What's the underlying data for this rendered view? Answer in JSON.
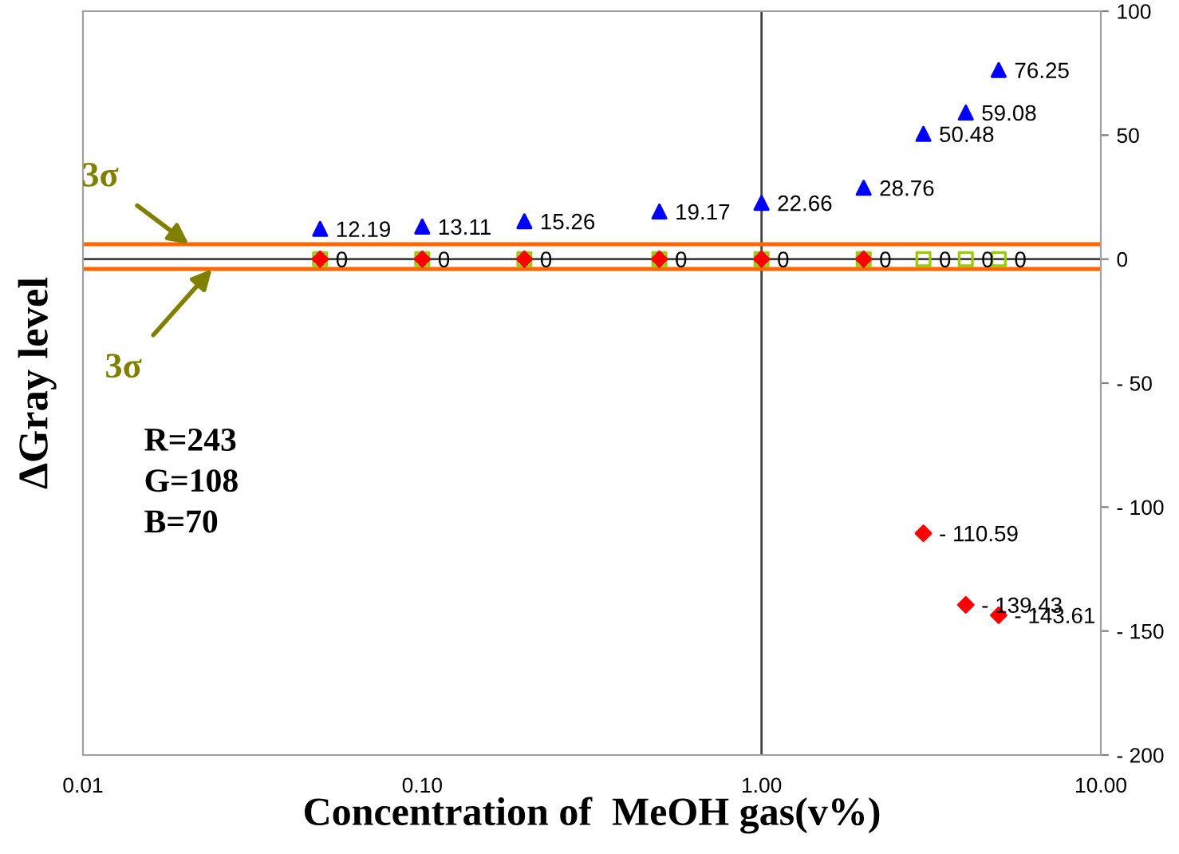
{
  "chart_data": {
    "type": "scatter",
    "xlabel": "Concentration of  MeOH gas(v%)",
    "ylabel": "ΔGray level",
    "log": "x",
    "xlim": [
      0.01,
      10
    ],
    "xticks": [
      {
        "value": 0.01,
        "label": "0.01"
      },
      {
        "value": 0.1,
        "label": "0.10"
      },
      {
        "value": 1,
        "label": "1.00"
      },
      {
        "value": 10,
        "label": "10.00"
      }
    ],
    "ylim": [
      -200,
      100
    ],
    "yticks": [
      100,
      50,
      0,
      {
        "value": -50,
        "label": "- 50"
      },
      {
        "value": -100,
        "label": "- 100"
      },
      {
        "value": -150,
        "label": "- 150"
      },
      {
        "value": -200,
        "label": "- 200"
      }
    ],
    "x": [
      0.05,
      0.1,
      0.2,
      0.5,
      1,
      2,
      3,
      4,
      5
    ],
    "series": [
      {
        "color": "#0000ff",
        "marker": "triangle",
        "values": [
          12.19,
          13.11,
          15.26,
          19.17,
          22.66,
          28.76,
          50.48,
          59.08,
          76.25
        ],
        "value_labels": [
          "12.19",
          "13.11",
          "15.26",
          "19.17",
          "22.66",
          "28.76",
          "50.48",
          "59.08",
          "76.25"
        ]
      },
      {
        "color": "#99cc00",
        "marker": "square",
        "values": [
          0,
          0,
          0,
          0,
          0,
          0,
          0,
          0,
          0
        ],
        "value_labels": [
          "0",
          "0",
          "0",
          "0",
          "0",
          "0",
          "0",
          "0",
          "0"
        ]
      },
      {
        "color": "#ff0000",
        "marker": "diamond",
        "values": [
          0,
          0,
          0,
          0,
          0,
          0,
          -110.59,
          -139.43,
          -143.61
        ],
        "value_labels": [
          null,
          null,
          null,
          null,
          null,
          null,
          "- 110.59",
          "- 139.43",
          "- 143.61"
        ]
      }
    ],
    "ref_lines": [
      {
        "axis": "x",
        "value": 1,
        "color": "#404040"
      },
      {
        "axis": "y",
        "value": 0,
        "color": "#404040"
      },
      {
        "axis": "y",
        "value": 6,
        "color": "#ff6600"
      },
      {
        "axis": "y",
        "value": -4,
        "color": "#ff6600"
      }
    ],
    "annotations": [
      {
        "text": "3σ",
        "x": 0.0205,
        "y": 6
      },
      {
        "text": "3σ",
        "x": 0.024,
        "y": -4
      },
      "R=243",
      "G=108",
      "B=70"
    ],
    "grid": false,
    "legend": false
  }
}
